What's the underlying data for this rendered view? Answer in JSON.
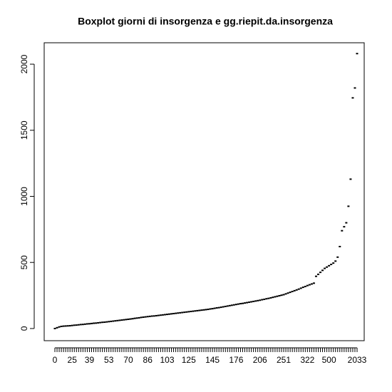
{
  "chart_data": {
    "type": "box",
    "title": "Boxplot giorni di insorgenza e gg.riepit.da.insorgenza",
    "categories": [
      "0",
      null,
      null,
      null,
      null,
      null,
      null,
      null,
      "25",
      null,
      null,
      null,
      null,
      null,
      null,
      null,
      "39",
      null,
      null,
      null,
      null,
      null,
      null,
      null,
      null,
      "53",
      null,
      null,
      null,
      null,
      null,
      null,
      null,
      null,
      "70",
      null,
      null,
      null,
      null,
      null,
      null,
      null,
      null,
      "86",
      null,
      null,
      null,
      null,
      null,
      null,
      null,
      null,
      "103",
      null,
      null,
      null,
      null,
      null,
      null,
      null,
      null,
      null,
      "125",
      null,
      null,
      null,
      null,
      null,
      null,
      null,
      null,
      null,
      null,
      "145",
      null,
      null,
      null,
      null,
      null,
      null,
      null,
      null,
      null,
      null,
      "176",
      null,
      null,
      null,
      null,
      null,
      null,
      null,
      null,
      null,
      null,
      "206",
      null,
      null,
      null,
      null,
      null,
      null,
      null,
      null,
      null,
      null,
      "251",
      null,
      null,
      null,
      null,
      null,
      null,
      null,
      null,
      null,
      null,
      "322",
      null,
      null,
      null,
      null,
      null,
      null,
      null,
      null,
      null,
      "500",
      null,
      null,
      null,
      null,
      null,
      null,
      null,
      null,
      null,
      null,
      null,
      null,
      "2033"
    ],
    "values": [
      0,
      6,
      12,
      16,
      18,
      19,
      20,
      21,
      23,
      25,
      26,
      28,
      30,
      31,
      33,
      35,
      36,
      38,
      40,
      41,
      43,
      45,
      47,
      48,
      50,
      52,
      54,
      56,
      58,
      60,
      62,
      64,
      66,
      68,
      70,
      72,
      74,
      77,
      79,
      81,
      84,
      86,
      88,
      90,
      92,
      94,
      95,
      97,
      99,
      101,
      103,
      105,
      107,
      109,
      111,
      113,
      115,
      117,
      119,
      121,
      123,
      125,
      127,
      129,
      131,
      133,
      135,
      137,
      139,
      141,
      143,
      145,
      148,
      150,
      153,
      156,
      158,
      161,
      164,
      167,
      170,
      173,
      176,
      179,
      182,
      185,
      188,
      190,
      193,
      196,
      199,
      202,
      205,
      208,
      211,
      214,
      218,
      221,
      225,
      228,
      232,
      236,
      240,
      244,
      248,
      252,
      256,
      262,
      268,
      274,
      280,
      286,
      292,
      298,
      305,
      312,
      318,
      325,
      331,
      337,
      343,
      395,
      410,
      425,
      440,
      455,
      465,
      475,
      485,
      495,
      510,
      540,
      620,
      740,
      770,
      800,
      925,
      1130,
      1745,
      1820,
      2080
    ],
    "color": "#000000",
    "ylim": [
      -92,
      2162
    ],
    "yticks": [
      0,
      500,
      1000,
      1500,
      2000
    ]
  }
}
